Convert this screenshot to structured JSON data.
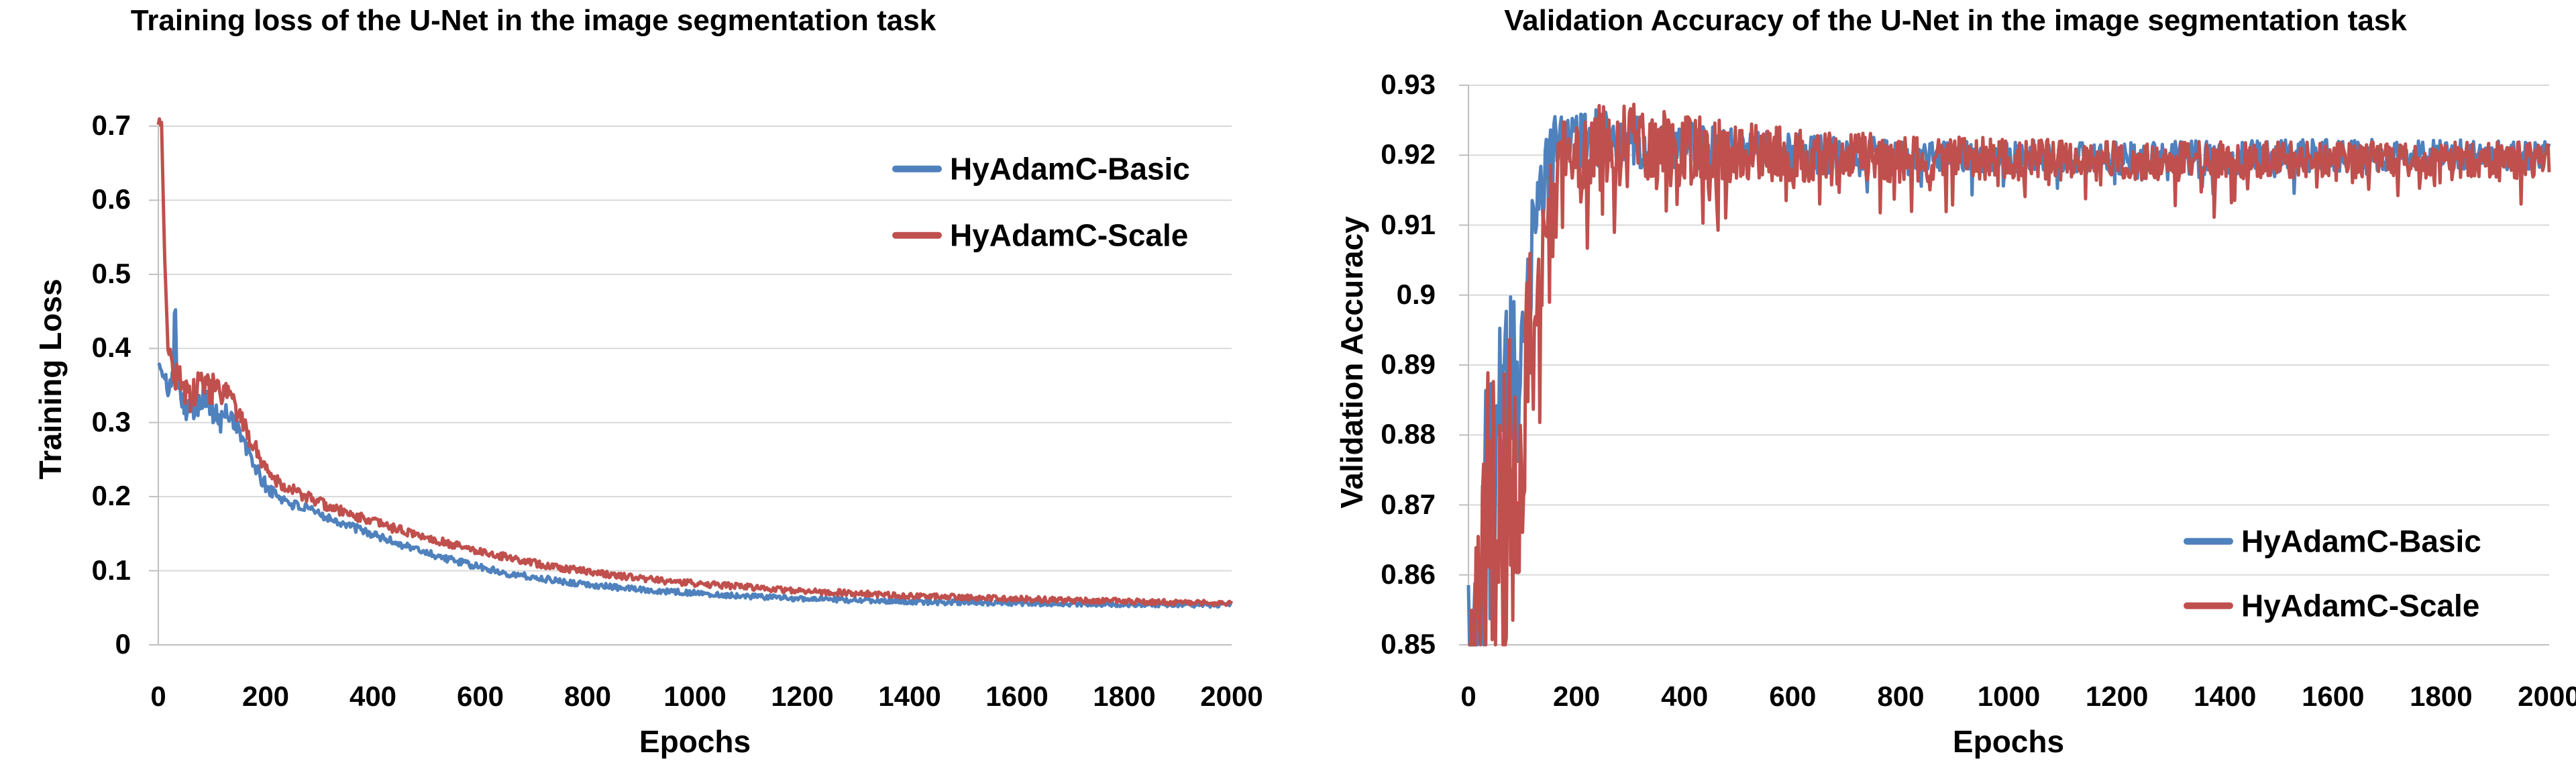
{
  "page": {
    "background": "#FFFFFF",
    "colors": {
      "grid": "#D9D9D9",
      "axis": "#BFBFBF",
      "text": "#000000"
    }
  },
  "chart_data": [
    {
      "type": "line",
      "title": "Training loss of the U-Net in the image segmentation task",
      "xlabel": "Epochs",
      "ylabel": "Training Loss",
      "xlim": [
        0,
        2000
      ],
      "ylim": [
        0,
        0.7
      ],
      "xticks": [
        0,
        200,
        400,
        600,
        800,
        1000,
        1200,
        1400,
        1600,
        1800,
        2000
      ],
      "yticks": [
        0,
        0.1,
        0.2,
        0.3,
        0.4,
        0.5,
        0.6,
        0.7
      ],
      "ytick_labels": [
        "0",
        "0.1",
        "0.2",
        "0.3",
        "0.4",
        "0.5",
        "0.6",
        "0.7"
      ],
      "grid": true,
      "legend_position": "inside-top-right",
      "series": [
        {
          "name": "HyAdamC-Basic",
          "color": "#4F81BD",
          "keypoints": [
            [
              0,
              0.38
            ],
            [
              10,
              0.36
            ],
            [
              20,
              0.345
            ],
            [
              28,
              0.36
            ],
            [
              31,
              0.51
            ],
            [
              34,
              0.38
            ],
            [
              40,
              0.345
            ],
            [
              55,
              0.315
            ],
            [
              70,
              0.325
            ],
            [
              85,
              0.34
            ],
            [
              100,
              0.315
            ],
            [
              115,
              0.3
            ],
            [
              130,
              0.315
            ],
            [
              145,
              0.3
            ],
            [
              160,
              0.27
            ],
            [
              175,
              0.25
            ],
            [
              190,
              0.225
            ],
            [
              205,
              0.21
            ],
            [
              225,
              0.2
            ],
            [
              250,
              0.19
            ],
            [
              280,
              0.182
            ],
            [
              310,
              0.174
            ],
            [
              340,
              0.165
            ],
            [
              370,
              0.157
            ],
            [
              400,
              0.149
            ],
            [
              430,
              0.141
            ],
            [
              460,
              0.134
            ],
            [
              490,
              0.127
            ],
            [
              520,
              0.12
            ],
            [
              550,
              0.114
            ],
            [
              580,
              0.108
            ],
            [
              610,
              0.103
            ],
            [
              640,
              0.098
            ],
            [
              670,
              0.094
            ],
            [
              700,
              0.091
            ],
            [
              740,
              0.087
            ],
            [
              780,
              0.083
            ],
            [
              820,
              0.08
            ],
            [
              860,
              0.077
            ],
            [
              900,
              0.075
            ],
            [
              950,
              0.072
            ],
            [
              1000,
              0.07
            ],
            [
              1060,
              0.067
            ],
            [
              1120,
              0.065
            ],
            [
              1180,
              0.063
            ],
            [
              1250,
              0.061
            ],
            [
              1320,
              0.06
            ],
            [
              1400,
              0.058
            ],
            [
              1500,
              0.057
            ],
            [
              1600,
              0.056
            ],
            [
              1700,
              0.055
            ],
            [
              1800,
              0.0545
            ],
            [
              1900,
              0.054
            ],
            [
              2000,
              0.0535
            ]
          ],
          "noise_profile": [
            [
              0,
              0.004
            ],
            [
              20,
              0.015
            ],
            [
              60,
              0.02
            ],
            [
              120,
              0.018
            ],
            [
              160,
              0.013
            ],
            [
              220,
              0.008
            ],
            [
              300,
              0.006
            ],
            [
              500,
              0.005
            ],
            [
              800,
              0.004
            ],
            [
              1200,
              0.0035
            ],
            [
              2000,
              0.003
            ]
          ],
          "down_spike": {
            "prob": 0,
            "scale": 0
          }
        },
        {
          "name": "HyAdamC-Scale",
          "color": "#C0504D",
          "keypoints": [
            [
              0,
              0.705
            ],
            [
              6,
              0.705
            ],
            [
              12,
              0.52
            ],
            [
              18,
              0.41
            ],
            [
              24,
              0.385
            ],
            [
              30,
              0.355
            ],
            [
              38,
              0.37
            ],
            [
              48,
              0.345
            ],
            [
              60,
              0.33
            ],
            [
              72,
              0.345
            ],
            [
              85,
              0.36
            ],
            [
              95,
              0.34
            ],
            [
              105,
              0.35
            ],
            [
              115,
              0.33
            ],
            [
              125,
              0.34
            ],
            [
              140,
              0.325
            ],
            [
              155,
              0.3
            ],
            [
              170,
              0.28
            ],
            [
              185,
              0.26
            ],
            [
              200,
              0.24
            ],
            [
              215,
              0.225
            ],
            [
              235,
              0.215
            ],
            [
              260,
              0.205
            ],
            [
              290,
              0.195
            ],
            [
              320,
              0.186
            ],
            [
              350,
              0.178
            ],
            [
              380,
              0.171
            ],
            [
              410,
              0.164
            ],
            [
              440,
              0.157
            ],
            [
              470,
              0.151
            ],
            [
              500,
              0.145
            ],
            [
              530,
              0.139
            ],
            [
              560,
              0.133
            ],
            [
              590,
              0.128
            ],
            [
              620,
              0.123
            ],
            [
              650,
              0.118
            ],
            [
              680,
              0.113
            ],
            [
              710,
              0.109
            ],
            [
              740,
              0.105
            ],
            [
              780,
              0.101
            ],
            [
              820,
              0.097
            ],
            [
              860,
              0.093
            ],
            [
              900,
              0.09
            ],
            [
              950,
              0.086
            ],
            [
              1000,
              0.083
            ],
            [
              1060,
              0.08
            ],
            [
              1120,
              0.077
            ],
            [
              1180,
              0.074
            ],
            [
              1250,
              0.071
            ],
            [
              1320,
              0.069
            ],
            [
              1400,
              0.066
            ],
            [
              1500,
              0.064
            ],
            [
              1600,
              0.062
            ],
            [
              1700,
              0.06
            ],
            [
              1800,
              0.059
            ],
            [
              1900,
              0.057
            ],
            [
              2000,
              0.056
            ]
          ],
          "noise_profile": [
            [
              0,
              0.004
            ],
            [
              20,
              0.016
            ],
            [
              60,
              0.022
            ],
            [
              120,
              0.02
            ],
            [
              160,
              0.014
            ],
            [
              220,
              0.009
            ],
            [
              300,
              0.007
            ],
            [
              500,
              0.0055
            ],
            [
              800,
              0.0045
            ],
            [
              1200,
              0.004
            ],
            [
              2000,
              0.0035
            ]
          ],
          "down_spike": {
            "prob": 0,
            "scale": 0
          }
        }
      ]
    },
    {
      "type": "line",
      "title": "Validation Accuracy of the U-Net in the image segmentation task",
      "xlabel": "Epochs",
      "ylabel": "Validation Accuracy",
      "xlim": [
        0,
        2000
      ],
      "ylim": [
        0.85,
        0.93
      ],
      "xticks": [
        0,
        200,
        400,
        600,
        800,
        1000,
        1200,
        1400,
        1600,
        1800,
        2000
      ],
      "yticks": [
        0.85,
        0.86,
        0.87,
        0.88,
        0.89,
        0.9,
        0.91,
        0.92,
        0.93
      ],
      "ytick_labels": [
        "0.85",
        "0.86",
        "0.87",
        "0.88",
        "0.89",
        "0.9",
        "0.91",
        "0.92",
        "0.93"
      ],
      "grid": true,
      "legend_position": "inside-bottom-right",
      "series": [
        {
          "name": "HyAdamC-Basic",
          "color": "#4F81BD",
          "keypoints": [
            [
              0,
              0.843
            ],
            [
              15,
              0.855
            ],
            [
              30,
              0.866
            ],
            [
              45,
              0.874
            ],
            [
              60,
              0.878
            ],
            [
              75,
              0.884
            ],
            [
              90,
              0.89
            ],
            [
              100,
              0.895
            ],
            [
              110,
              0.902
            ],
            [
              120,
              0.908
            ],
            [
              130,
              0.913
            ],
            [
              140,
              0.917
            ],
            [
              155,
              0.92
            ],
            [
              180,
              0.9215
            ],
            [
              220,
              0.9225
            ],
            [
              260,
              0.9225
            ],
            [
              300,
              0.922
            ],
            [
              350,
              0.9215
            ],
            [
              400,
              0.9215
            ],
            [
              450,
              0.921
            ],
            [
              500,
              0.9208
            ],
            [
              600,
              0.9203
            ],
            [
              700,
              0.92
            ],
            [
              800,
              0.9198
            ],
            [
              900,
              0.9196
            ],
            [
              1000,
              0.9196
            ],
            [
              1200,
              0.9196
            ],
            [
              1400,
              0.9197
            ],
            [
              1600,
              0.92
            ],
            [
              1800,
              0.92
            ],
            [
              2000,
              0.92
            ]
          ],
          "noise_profile": [
            [
              0,
              0.018
            ],
            [
              40,
              0.02
            ],
            [
              80,
              0.016
            ],
            [
              110,
              0.01
            ],
            [
              140,
              0.006
            ],
            [
              180,
              0.0045
            ],
            [
              250,
              0.004
            ],
            [
              350,
              0.0035
            ],
            [
              500,
              0.003
            ],
            [
              800,
              0.0026
            ],
            [
              1200,
              0.0024
            ],
            [
              2000,
              0.0022
            ]
          ],
          "down_spike": {
            "prob": 0.05,
            "scale": 1.6
          }
        },
        {
          "name": "HyAdamC-Scale",
          "color": "#C0504D",
          "keypoints": [
            [
              0,
              0.84
            ],
            [
              15,
              0.852
            ],
            [
              30,
              0.862
            ],
            [
              45,
              0.868
            ],
            [
              60,
              0.863
            ],
            [
              75,
              0.87
            ],
            [
              90,
              0.878
            ],
            [
              105,
              0.886
            ],
            [
              115,
              0.892
            ],
            [
              125,
              0.898
            ],
            [
              135,
              0.904
            ],
            [
              145,
              0.909
            ],
            [
              155,
              0.913
            ],
            [
              170,
              0.917
            ],
            [
              190,
              0.9195
            ],
            [
              220,
              0.921
            ],
            [
              260,
              0.9215
            ],
            [
              300,
              0.921
            ],
            [
              350,
              0.9212
            ],
            [
              400,
              0.92
            ],
            [
              450,
              0.9205
            ],
            [
              500,
              0.9202
            ],
            [
              600,
              0.9198
            ],
            [
              700,
              0.9196
            ],
            [
              800,
              0.9196
            ],
            [
              900,
              0.9194
            ],
            [
              1000,
              0.9194
            ],
            [
              1200,
              0.9192
            ],
            [
              1400,
              0.9192
            ],
            [
              1600,
              0.9193
            ],
            [
              1800,
              0.9192
            ],
            [
              2000,
              0.9193
            ]
          ],
          "noise_profile": [
            [
              0,
              0.022
            ],
            [
              40,
              0.026
            ],
            [
              80,
              0.024
            ],
            [
              110,
              0.016
            ],
            [
              140,
              0.01
            ],
            [
              170,
              0.008
            ],
            [
              220,
              0.007
            ],
            [
              300,
              0.0065
            ],
            [
              400,
              0.0055
            ],
            [
              500,
              0.0045
            ],
            [
              700,
              0.0038
            ],
            [
              900,
              0.0032
            ],
            [
              1200,
              0.0028
            ],
            [
              2000,
              0.0026
            ]
          ],
          "down_spike": {
            "prob": 0.1,
            "scale": 2.0
          }
        }
      ]
    }
  ]
}
